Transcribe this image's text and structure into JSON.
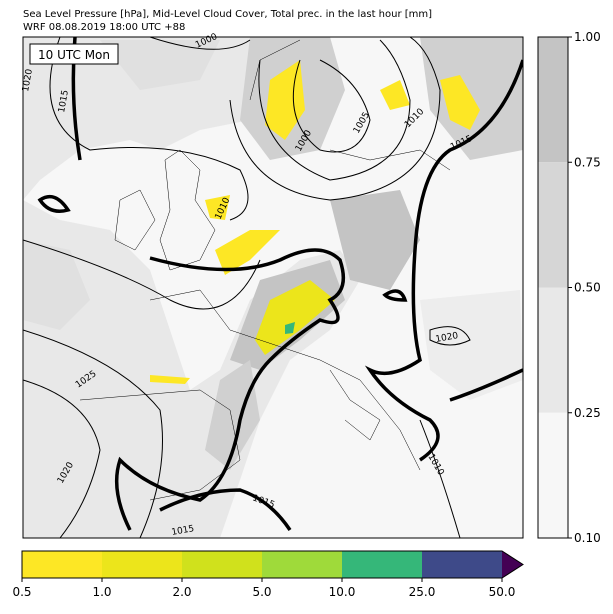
{
  "header": {
    "line1": "Sea Level Pressure [hPa], Mid-Level Cloud Cover, Total prec. in the last hour [mm]",
    "line2": "WRF 08.08.2019 18:00 UTC +88"
  },
  "map": {
    "time_label": "10 UTC Mon",
    "isobar_labels": [
      "1000",
      "1015",
      "1020",
      "1000",
      "1005",
      "1010",
      "1015",
      "1010",
      "1020",
      "1025",
      "1020",
      "1010",
      "1015",
      "1015"
    ]
  },
  "cloud_colorbar": {
    "ticks": [
      "1.00",
      "0.75",
      "0.50",
      "0.25",
      "0.10"
    ],
    "colors": [
      "#c4c4c4",
      "#d6d6d6",
      "#e8e8e8",
      "#f7f7f7"
    ]
  },
  "precip_colorbar": {
    "ticks": [
      "0.5",
      "1.0",
      "2.0",
      "5.0",
      "10.0",
      "25.0",
      "50.0"
    ],
    "colors": [
      "#fde725",
      "#ece51b",
      "#d0e11c",
      "#9fda3a",
      "#35b779",
      "#3e4a89"
    ],
    "extend_color": "#440154"
  }
}
